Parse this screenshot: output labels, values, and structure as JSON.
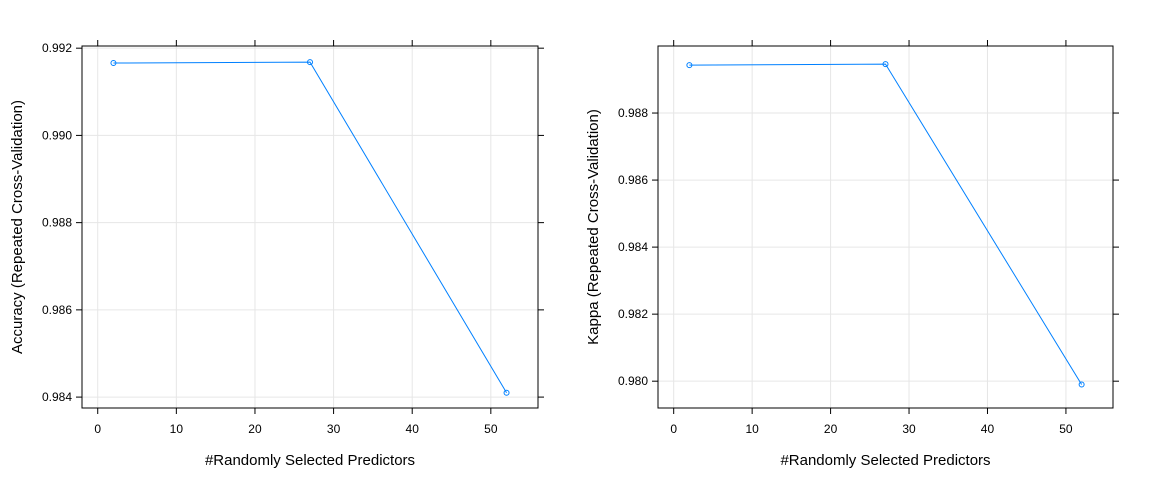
{
  "chart_data": [
    {
      "type": "line",
      "title": "",
      "xlabel": "#Randomly Selected Predictors",
      "ylabel": "Accuracy (Repeated Cross-Validation)",
      "x": [
        2,
        27,
        52
      ],
      "values": [
        0.99166,
        0.99168,
        0.9841
      ],
      "xlim": [
        -2,
        56
      ],
      "ylim": [
        0.98375,
        0.99205
      ],
      "xticks": [
        0,
        10,
        20,
        30,
        40,
        50
      ],
      "xtick_labels": [
        "0",
        "10",
        "20",
        "30",
        "40",
        "50"
      ],
      "yticks": [
        0.984,
        0.986,
        0.988,
        0.99,
        0.992
      ],
      "ytick_labels": [
        "0.984",
        "0.986",
        "0.988",
        "0.990",
        "0.992"
      ],
      "grid": true,
      "line_color": "#0080ff",
      "grid_color": "#e6e6e6"
    },
    {
      "type": "line",
      "title": "",
      "xlabel": "#Randomly Selected Predictors",
      "ylabel": "Kappa (Repeated Cross-Validation)",
      "x": [
        2,
        27,
        52
      ],
      "values": [
        0.98943,
        0.98946,
        0.9799
      ],
      "xlim": [
        -2,
        56
      ],
      "ylim": [
        0.9792,
        0.99
      ],
      "xticks": [
        0,
        10,
        20,
        30,
        40,
        50
      ],
      "xtick_labels": [
        "0",
        "10",
        "20",
        "30",
        "40",
        "50"
      ],
      "yticks": [
        0.98,
        0.982,
        0.984,
        0.986,
        0.988
      ],
      "ytick_labels": [
        "0.980",
        "0.982",
        "0.984",
        "0.986",
        "0.988"
      ],
      "grid": true,
      "line_color": "#0080ff",
      "grid_color": "#e6e6e6"
    }
  ]
}
